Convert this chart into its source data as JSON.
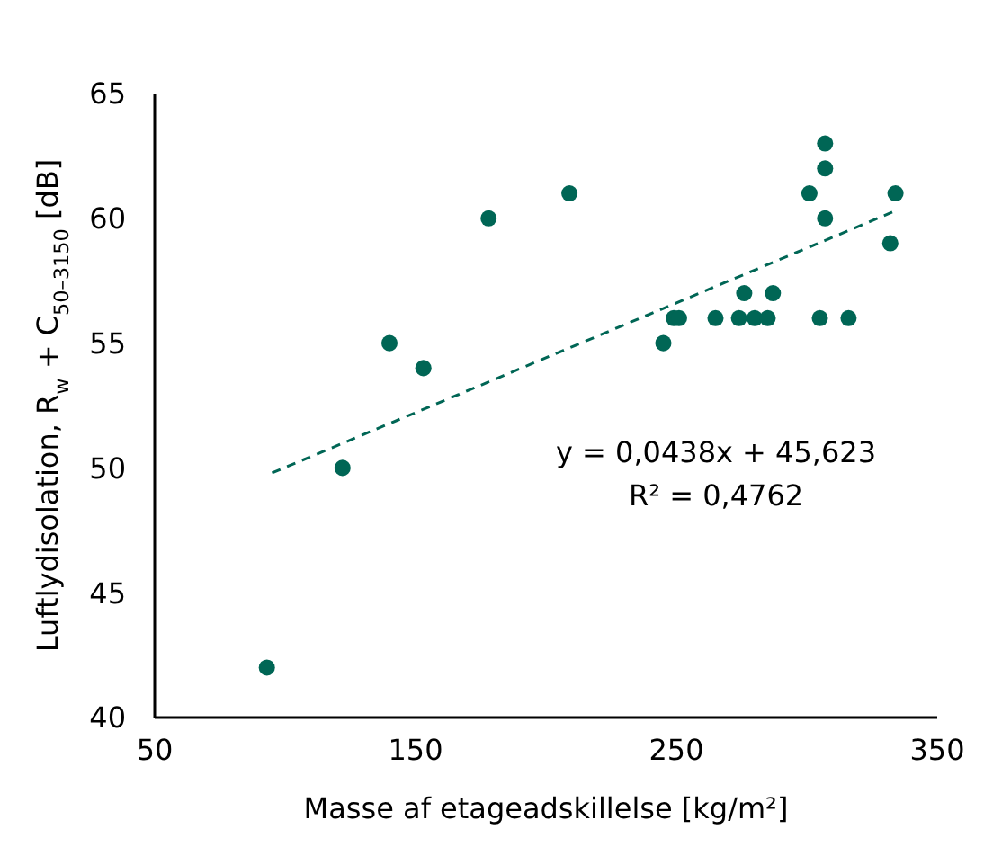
{
  "chart_data": {
    "type": "scatter",
    "xlabel": "Masse af etageadskillelse [kg/m²]",
    "ylabel": "Luftlydisolation, R$_{w}$ + C$_{50–3150}$ [dB]",
    "series": [
      {
        "color": "#006655",
        "x": [
          93,
          122,
          140,
          153,
          178,
          209,
          245,
          249,
          251,
          265,
          274,
          276,
          280,
          285,
          287,
          301,
          305,
          307,
          307,
          307,
          316,
          332,
          334
        ],
        "values": [
          42,
          50,
          55,
          54,
          60,
          61,
          55,
          56,
          56,
          56,
          56,
          57,
          56,
          56,
          57,
          61,
          56,
          60,
          62,
          63,
          56,
          59,
          61
        ],
        "marker": "circle"
      },
      {
        "type": "line",
        "color": "#006655",
        "x": [
          95,
          334
        ],
        "values": [
          49.8,
          60.3
        ],
        "line_style": "dashed",
        "marker": "none"
      }
    ],
    "annotations": [
      "y = 0,0438x + 45,623",
      "R² = 0,4762"
    ],
    "xlim": [
      50,
      350
    ],
    "xticks": [
      50,
      150,
      250,
      350
    ],
    "ylim": [
      40,
      65
    ],
    "yticks": [
      40,
      45,
      50,
      55,
      60,
      65
    ],
    "grid": false,
    "legend": false
  }
}
